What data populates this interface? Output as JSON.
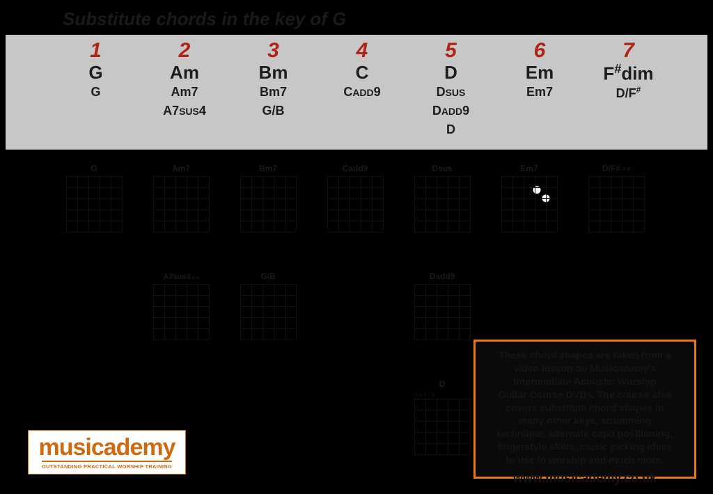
{
  "title": "Substitute chords in the key of G",
  "degrees": [
    {
      "n": "1",
      "main": "G",
      "subs": [
        "G"
      ]
    },
    {
      "n": "2",
      "main": "Am",
      "subs": [
        "Am7",
        "A7sus4"
      ]
    },
    {
      "n": "3",
      "main": "Bm",
      "subs": [
        "Bm7",
        "G/B"
      ]
    },
    {
      "n": "4",
      "main": "C",
      "subs": [
        "Cadd9"
      ]
    },
    {
      "n": "5",
      "main": "D",
      "subs": [
        "Dsus",
        "Dadd9",
        "D"
      ]
    },
    {
      "n": "6",
      "main": "Em",
      "subs": [
        "Em7"
      ]
    },
    {
      "n": "7",
      "main": "F#dim",
      "subs": [
        "D/F#"
      ]
    }
  ],
  "row1": [
    "G",
    "Am7",
    "Bm7",
    "Cadd9",
    "Dsus",
    "Em7",
    "D/F#"
  ],
  "row2": [
    "",
    "A7sus4",
    "G/B",
    "",
    "Dadd9",
    "",
    ""
  ],
  "row3": [
    "",
    "",
    "",
    "",
    "D",
    "",
    ""
  ],
  "row3b": "int.3",
  "dots_em7": [
    [
      4,
      1
    ],
    [
      5,
      2
    ]
  ],
  "info_lines": [
    "These chord shapes are taken from a",
    "video lesson on Musicademy's",
    "Intermediate Acoustic Worship",
    "Guitar Course DVDs. The course also",
    "covers substitute chord shapes in",
    "many other keys, strumming",
    "technique, alternate capo positioning,",
    "fingerstyle skills, music picking ideas",
    "to use in worship and much more."
  ],
  "info_url": "www.musicademy.co.uk",
  "logo_brand": "musicademy",
  "logo_tag": "OUTSTANDING PRACTICAL WORSHIP TRAINING",
  "colors": {
    "degree": "#b02418",
    "brand": "#d06a10",
    "info_border": "#e87817",
    "band": "#c8c7c7"
  }
}
